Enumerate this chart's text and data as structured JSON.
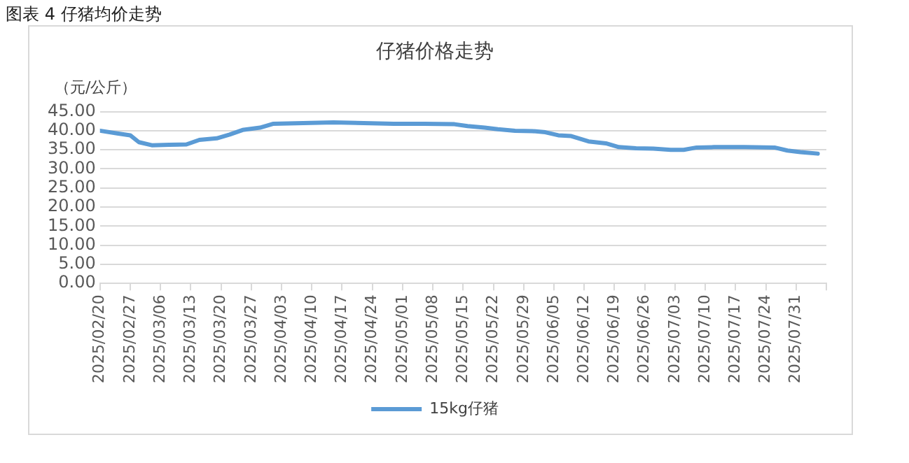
{
  "chart_data": {
    "type": "line",
    "title": "仔猪价格走势",
    "ylabel": "（元/公斤）",
    "annotations": [
      "图表 4 仔猪均价走势"
    ],
    "x": [
      "2025-02-20",
      "2025-02-24",
      "2025-02-27",
      "2025-03-01",
      "2025-03-04",
      "2025-03-08",
      "2025-03-12",
      "2025-03-15",
      "2025-03-19",
      "2025-03-22",
      "2025-03-25",
      "2025-03-29",
      "2025-04-01",
      "2025-04-08",
      "2025-04-15",
      "2025-04-22",
      "2025-04-29",
      "2025-05-06",
      "2025-05-13",
      "2025-05-16",
      "2025-05-20",
      "2025-05-23",
      "2025-05-27",
      "2025-05-31",
      "2025-06-03",
      "2025-06-06",
      "2025-06-09",
      "2025-06-13",
      "2025-06-17",
      "2025-06-20",
      "2025-06-24",
      "2025-06-28",
      "2025-07-02",
      "2025-07-05",
      "2025-07-08",
      "2025-07-12",
      "2025-07-19",
      "2025-07-26",
      "2025-07-29",
      "2025-08-01",
      "2025-08-05"
    ],
    "series": [
      {
        "name": "15kg仔猪",
        "color": "#5b9bd5",
        "values": [
          40.0,
          39.3,
          38.8,
          37.0,
          36.2,
          36.3,
          36.4,
          37.6,
          38.0,
          39.0,
          40.2,
          40.8,
          41.8,
          42.0,
          42.2,
          42.0,
          41.8,
          41.8,
          41.7,
          41.2,
          40.8,
          40.4,
          40.0,
          39.9,
          39.6,
          38.8,
          38.6,
          37.2,
          36.7,
          35.7,
          35.4,
          35.3,
          35.0,
          35.0,
          35.6,
          35.7,
          35.7,
          35.6,
          34.8,
          34.4,
          34.0
        ]
      }
    ],
    "xlim": [
      "2025-02-20",
      "2025-08-07"
    ],
    "xticks": [
      {
        "value": "2025-02-20",
        "label": "2025/02/20"
      },
      {
        "value": "2025-02-27",
        "label": "2025/02/27"
      },
      {
        "value": "2025-03-06",
        "label": "2025/03/06"
      },
      {
        "value": "2025-03-13",
        "label": "2025/03/13"
      },
      {
        "value": "2025-03-20",
        "label": "2025/03/20"
      },
      {
        "value": "2025-03-27",
        "label": "2025/03/27"
      },
      {
        "value": "2025-04-03",
        "label": "2025/04/03"
      },
      {
        "value": "2025-04-10",
        "label": "2025/04/10"
      },
      {
        "value": "2025-04-17",
        "label": "2025/04/17"
      },
      {
        "value": "2025-04-24",
        "label": "2025/04/24"
      },
      {
        "value": "2025-05-01",
        "label": "2025/05/01"
      },
      {
        "value": "2025-05-08",
        "label": "2025/05/08"
      },
      {
        "value": "2025-05-15",
        "label": "2025/05/15"
      },
      {
        "value": "2025-05-22",
        "label": "2025/05/22"
      },
      {
        "value": "2025-05-29",
        "label": "2025/05/29"
      },
      {
        "value": "2025-06-05",
        "label": "2025/06/05"
      },
      {
        "value": "2025-06-12",
        "label": "2025/06/12"
      },
      {
        "value": "2025-06-19",
        "label": "2025/06/19"
      },
      {
        "value": "2025-06-26",
        "label": "2025/06/26"
      },
      {
        "value": "2025-07-03",
        "label": "2025/07/03"
      },
      {
        "value": "2025-07-10",
        "label": "2025/07/10"
      },
      {
        "value": "2025-07-17",
        "label": "2025/07/17"
      },
      {
        "value": "2025-07-24",
        "label": "2025/07/24"
      },
      {
        "value": "2025-07-31",
        "label": "2025/07/31"
      },
      {
        "value": "2025-08-07",
        "label": null
      }
    ],
    "ylim": [
      0,
      45
    ],
    "yticks": [
      {
        "value": 0,
        "label": "0.00"
      },
      {
        "value": 5,
        "label": "5.00"
      },
      {
        "value": 10,
        "label": "10.00"
      },
      {
        "value": 15,
        "label": "15.00"
      },
      {
        "value": 20,
        "label": "20.00"
      },
      {
        "value": 25,
        "label": "25.00"
      },
      {
        "value": 30,
        "label": "30.00"
      },
      {
        "value": 35,
        "label": "35.00"
      },
      {
        "value": 40,
        "label": "40.00"
      },
      {
        "value": 45,
        "label": "45.00"
      }
    ],
    "grid": "y",
    "legend": "bottom",
    "marker": "none",
    "line_style": "solid"
  }
}
